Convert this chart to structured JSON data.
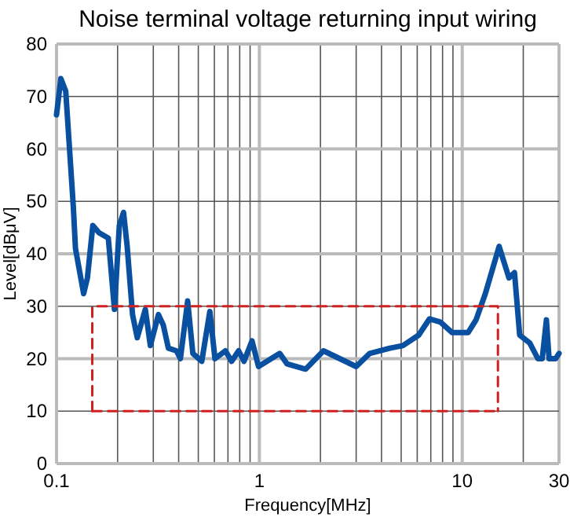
{
  "chart_data": {
    "type": "line",
    "title": "Noise terminal voltage returning input wiring",
    "xlabel": "Frequency[MHz]",
    "ylabel": "Level[dBμV]",
    "log": "x",
    "grid": true,
    "marker": "none",
    "xlim": [
      0.1,
      30
    ],
    "xticks": [
      0.1,
      {
        "value": 0.2,
        "label": null
      },
      {
        "value": 0.3,
        "label": null
      },
      {
        "value": 0.4,
        "label": null
      },
      {
        "value": 0.5,
        "label": null
      },
      {
        "value": 0.6,
        "label": null
      },
      {
        "value": 0.7,
        "label": null
      },
      {
        "value": 0.8,
        "label": null
      },
      {
        "value": 0.9,
        "label": null
      },
      1,
      {
        "value": 2,
        "label": null
      },
      {
        "value": 3,
        "label": null
      },
      {
        "value": 4,
        "label": null
      },
      {
        "value": 5,
        "label": null
      },
      {
        "value": 6,
        "label": null
      },
      {
        "value": 7,
        "label": null
      },
      {
        "value": 8,
        "label": null
      },
      {
        "value": 9,
        "label": null
      },
      10,
      {
        "value": 20,
        "label": null
      },
      30
    ],
    "ylim": [
      0,
      80
    ],
    "yticks": [
      0,
      10,
      20,
      30,
      40,
      50,
      60,
      70,
      80
    ],
    "series": [
      {
        "color": "#0a50a0",
        "line_style": "solid",
        "x": [
          0.1,
          0.105,
          0.111,
          0.115,
          0.121,
          0.124,
          0.136,
          0.142,
          0.151,
          0.162,
          0.18,
          0.193,
          0.204,
          0.214,
          0.223,
          0.237,
          0.25,
          0.274,
          0.29,
          0.318,
          0.336,
          0.356,
          0.39,
          0.408,
          0.443,
          0.47,
          0.52,
          0.57,
          0.604,
          0.68,
          0.73,
          0.79,
          0.84,
          0.92,
          0.99,
          1.26,
          1.37,
          1.69,
          2.07,
          3.0,
          3.5,
          4.4,
          5.1,
          6.1,
          6.9,
          7.8,
          8.9,
          10.7,
          11.7,
          13.0,
          15.2,
          17.0,
          18.1,
          19.2,
          21.5,
          23.6,
          24.8,
          26.0,
          26.8,
          28.9,
          30
        ],
        "values": [
          66.5,
          73.4,
          71,
          62,
          49,
          41,
          32.4,
          35.4,
          45.4,
          44,
          43,
          29.4,
          45.4,
          47.9,
          41.4,
          28.4,
          24,
          29.4,
          22.5,
          28.4,
          26.4,
          22,
          21.5,
          20,
          31,
          21,
          19.5,
          29,
          20,
          21.5,
          19.5,
          21.5,
          19.5,
          23.4,
          18.5,
          21,
          19,
          18,
          21.5,
          18.5,
          21,
          22,
          22.5,
          24.5,
          27.6,
          27,
          25,
          25,
          27.4,
          32.4,
          41.4,
          35.4,
          36.4,
          24.5,
          23,
          20,
          20,
          27.4,
          20,
          20,
          21
        ]
      },
      {
        "color": "#d02020",
        "line_style": "dashed",
        "x": [
          0.15,
          0.15,
          15,
          15
        ],
        "values": [
          10,
          30,
          30,
          10
        ]
      },
      {
        "color": "#d02020",
        "line_style": "dashed",
        "x": [
          0.15,
          15
        ],
        "values": [
          10,
          10
        ]
      }
    ]
  }
}
